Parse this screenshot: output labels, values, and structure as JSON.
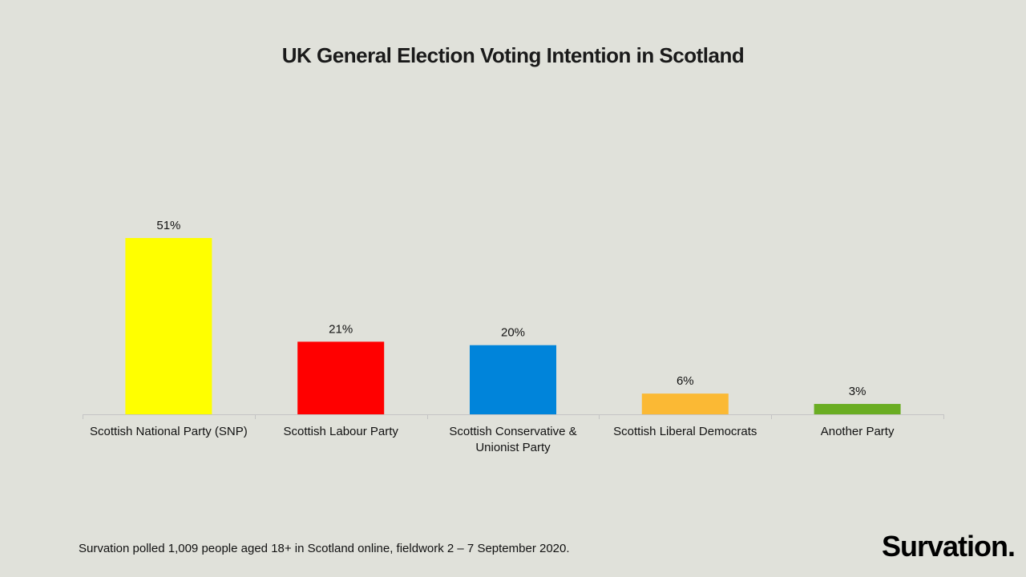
{
  "chart_data": {
    "type": "bar",
    "title": "UK General Election Voting Intention in Scotland",
    "categories": [
      [
        "Scottish National Party (SNP)"
      ],
      [
        "Scottish Labour Party"
      ],
      [
        "Scottish Conservative &",
        "Unionist Party"
      ],
      [
        "Scottish Liberal Democrats"
      ],
      [
        "Another Party"
      ]
    ],
    "values": [
      51,
      21,
      20,
      6,
      3
    ],
    "value_labels": [
      "51%",
      "21%",
      "20%",
      "6%",
      "3%"
    ],
    "colors": [
      "#ffff00",
      "#ff0000",
      "#0084da",
      "#fbb934",
      "#6aad22"
    ],
    "ylim": [
      0,
      51
    ],
    "xlabel": "",
    "ylabel": "",
    "grid": false,
    "legend": "none"
  },
  "footnote": "Survation polled 1,009 people aged 18+ in Scotland online, fieldwork 2 – 7 September 2020.",
  "logo_text": "Survation."
}
